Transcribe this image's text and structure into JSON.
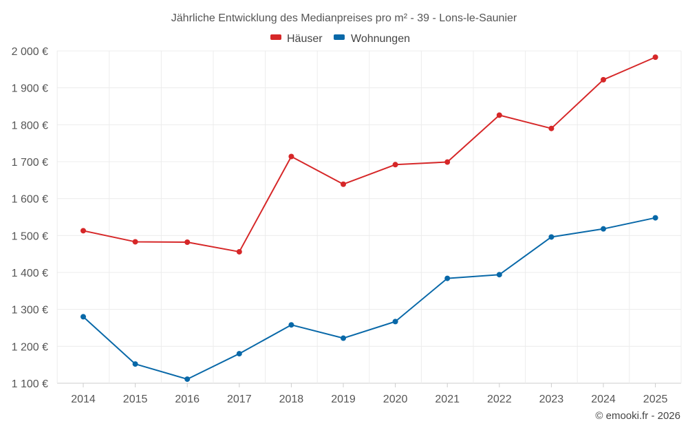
{
  "chart_data": {
    "type": "line",
    "title": "Jährliche Entwicklung des Medianpreises pro m² - 39 - Lons-le-Saunier",
    "categories": [
      "2014",
      "2015",
      "2016",
      "2017",
      "2018",
      "2019",
      "2020",
      "2021",
      "2022",
      "2023",
      "2024",
      "2025"
    ],
    "series": [
      {
        "name": "Häuser",
        "color": "#d62728",
        "values": [
          1513,
          1483,
          1482,
          1456,
          1714,
          1639,
          1692,
          1699,
          1826,
          1790,
          1922,
          1983
        ]
      },
      {
        "name": "Wohnungen",
        "color": "#0868a8",
        "values": [
          1280,
          1152,
          1111,
          1180,
          1258,
          1222,
          1267,
          1384,
          1394,
          1496,
          1518,
          1548
        ]
      }
    ],
    "ylim": [
      1100,
      2000
    ],
    "yticks": [
      1100,
      1200,
      1300,
      1400,
      1500,
      1600,
      1700,
      1800,
      1900,
      2000
    ],
    "ytick_labels": [
      "1 100 €",
      "1 200 €",
      "1 300 €",
      "1 400 €",
      "1 500 €",
      "1 600 €",
      "1 700 €",
      "1 800 €",
      "1 900 €",
      "2 000 €"
    ],
    "grid": true,
    "legend_position": "top-center",
    "xlabel": "",
    "ylabel": ""
  },
  "credit": "© emooki.fr - 2026"
}
